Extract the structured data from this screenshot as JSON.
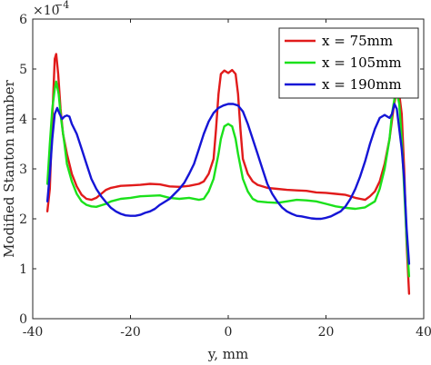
{
  "chart_data": {
    "type": "line",
    "title": "",
    "xlabel": "y, mm",
    "ylabel": "Modified Stanton number",
    "xlim": [
      -40,
      40
    ],
    "ylim": [
      0,
      6
    ],
    "xticks": [
      -40,
      -20,
      0,
      20,
      40
    ],
    "xtick_labels": [
      "-40",
      "-20",
      "0",
      "20",
      "40"
    ],
    "yticks": [
      0,
      1,
      2,
      3,
      4,
      5,
      6
    ],
    "ytick_labels": [
      "0",
      "1",
      "2",
      "3",
      "4",
      "5",
      "6"
    ],
    "y_multiplier_base": "×10",
    "y_multiplier_exp": "−4",
    "grid": false,
    "legend_position": "top-right",
    "series": [
      {
        "name": "x = 75mm",
        "color": "#e11b1b",
        "points": [
          [
            -37,
            2.15
          ],
          [
            -36.5,
            2.6
          ],
          [
            -36,
            4.0
          ],
          [
            -35.5,
            5.2
          ],
          [
            -35.2,
            5.3
          ],
          [
            -34.8,
            4.9
          ],
          [
            -34.3,
            4.2
          ],
          [
            -33.8,
            3.7
          ],
          [
            -33,
            3.3
          ],
          [
            -32,
            2.9
          ],
          [
            -31,
            2.65
          ],
          [
            -30,
            2.48
          ],
          [
            -29,
            2.4
          ],
          [
            -28,
            2.38
          ],
          [
            -27,
            2.42
          ],
          [
            -26,
            2.5
          ],
          [
            -25,
            2.58
          ],
          [
            -24,
            2.62
          ],
          [
            -22,
            2.66
          ],
          [
            -20,
            2.67
          ],
          [
            -18,
            2.68
          ],
          [
            -16,
            2.7
          ],
          [
            -14,
            2.69
          ],
          [
            -12,
            2.65
          ],
          [
            -10,
            2.64
          ],
          [
            -8,
            2.66
          ],
          [
            -6,
            2.7
          ],
          [
            -5,
            2.75
          ],
          [
            -4,
            2.9
          ],
          [
            -3,
            3.2
          ],
          [
            -2.5,
            3.8
          ],
          [
            -2,
            4.5
          ],
          [
            -1.5,
            4.9
          ],
          [
            -0.8,
            4.97
          ],
          [
            0,
            4.92
          ],
          [
            0.8,
            4.98
          ],
          [
            1.5,
            4.9
          ],
          [
            2,
            4.5
          ],
          [
            2.5,
            3.8
          ],
          [
            3,
            3.2
          ],
          [
            4,
            2.9
          ],
          [
            5,
            2.75
          ],
          [
            6,
            2.68
          ],
          [
            8,
            2.62
          ],
          [
            10,
            2.6
          ],
          [
            12,
            2.58
          ],
          [
            14,
            2.57
          ],
          [
            16,
            2.56
          ],
          [
            18,
            2.53
          ],
          [
            20,
            2.52
          ],
          [
            22,
            2.5
          ],
          [
            24,
            2.48
          ],
          [
            26,
            2.42
          ],
          [
            27,
            2.4
          ],
          [
            28,
            2.38
          ],
          [
            29,
            2.45
          ],
          [
            30,
            2.55
          ],
          [
            31,
            2.75
          ],
          [
            32,
            3.1
          ],
          [
            33,
            3.6
          ],
          [
            33.8,
            4.2
          ],
          [
            34.5,
            4.6
          ],
          [
            35,
            4.5
          ],
          [
            35.5,
            4.1
          ],
          [
            36,
            3.0
          ],
          [
            36.5,
            1.5
          ],
          [
            37,
            0.5
          ]
        ]
      },
      {
        "name": "x = 105mm",
        "color": "#1be11b",
        "points": [
          [
            -37,
            2.7
          ],
          [
            -36.5,
            3.5
          ],
          [
            -36,
            4.2
          ],
          [
            -35.5,
            4.6
          ],
          [
            -35.2,
            4.75
          ],
          [
            -34.7,
            4.5
          ],
          [
            -34.2,
            4.0
          ],
          [
            -33.5,
            3.5
          ],
          [
            -33,
            3.1
          ],
          [
            -32,
            2.75
          ],
          [
            -31,
            2.5
          ],
          [
            -30,
            2.35
          ],
          [
            -29,
            2.28
          ],
          [
            -28,
            2.25
          ],
          [
            -27,
            2.24
          ],
          [
            -26,
            2.27
          ],
          [
            -25,
            2.3
          ],
          [
            -24,
            2.35
          ],
          [
            -22,
            2.4
          ],
          [
            -20,
            2.42
          ],
          [
            -18,
            2.45
          ],
          [
            -16,
            2.46
          ],
          [
            -14,
            2.47
          ],
          [
            -12,
            2.42
          ],
          [
            -10,
            2.4
          ],
          [
            -8,
            2.42
          ],
          [
            -6,
            2.38
          ],
          [
            -5,
            2.4
          ],
          [
            -4,
            2.55
          ],
          [
            -3,
            2.8
          ],
          [
            -2,
            3.3
          ],
          [
            -1.5,
            3.6
          ],
          [
            -0.8,
            3.85
          ],
          [
            0,
            3.9
          ],
          [
            0.8,
            3.85
          ],
          [
            1.5,
            3.6
          ],
          [
            2,
            3.3
          ],
          [
            3,
            2.8
          ],
          [
            4,
            2.55
          ],
          [
            5,
            2.4
          ],
          [
            6,
            2.35
          ],
          [
            8,
            2.33
          ],
          [
            10,
            2.32
          ],
          [
            12,
            2.35
          ],
          [
            14,
            2.38
          ],
          [
            16,
            2.37
          ],
          [
            18,
            2.35
          ],
          [
            20,
            2.3
          ],
          [
            22,
            2.25
          ],
          [
            24,
            2.22
          ],
          [
            26,
            2.2
          ],
          [
            28,
            2.23
          ],
          [
            30,
            2.35
          ],
          [
            31,
            2.6
          ],
          [
            32,
            3.0
          ],
          [
            33,
            3.6
          ],
          [
            33.5,
            4.1
          ],
          [
            34,
            4.4
          ],
          [
            34.5,
            4.55
          ],
          [
            35,
            4.3
          ],
          [
            35.5,
            3.6
          ],
          [
            36,
            2.6
          ],
          [
            36.5,
            1.6
          ],
          [
            37,
            0.85
          ]
        ]
      },
      {
        "name": "x = 190mm",
        "color": "#1515d6",
        "points": [
          [
            -37,
            2.35
          ],
          [
            -36.5,
            2.9
          ],
          [
            -36,
            3.6
          ],
          [
            -35.5,
            4.1
          ],
          [
            -35,
            4.22
          ],
          [
            -34.5,
            4.1
          ],
          [
            -34,
            4.0
          ],
          [
            -33.5,
            4.05
          ],
          [
            -33,
            4.07
          ],
          [
            -32.5,
            4.05
          ],
          [
            -32,
            3.9
          ],
          [
            -31,
            3.7
          ],
          [
            -30,
            3.4
          ],
          [
            -29,
            3.1
          ],
          [
            -28,
            2.8
          ],
          [
            -27,
            2.6
          ],
          [
            -26,
            2.45
          ],
          [
            -25,
            2.33
          ],
          [
            -24,
            2.22
          ],
          [
            -23,
            2.15
          ],
          [
            -22,
            2.1
          ],
          [
            -21,
            2.07
          ],
          [
            -20,
            2.06
          ],
          [
            -19,
            2.06
          ],
          [
            -18,
            2.08
          ],
          [
            -17,
            2.12
          ],
          [
            -16,
            2.15
          ],
          [
            -15,
            2.2
          ],
          [
            -14,
            2.28
          ],
          [
            -12,
            2.4
          ],
          [
            -10,
            2.6
          ],
          [
            -9,
            2.72
          ],
          [
            -8,
            2.9
          ],
          [
            -7,
            3.1
          ],
          [
            -6,
            3.4
          ],
          [
            -5,
            3.7
          ],
          [
            -4,
            3.95
          ],
          [
            -3,
            4.12
          ],
          [
            -2,
            4.22
          ],
          [
            -1,
            4.27
          ],
          [
            0,
            4.3
          ],
          [
            1,
            4.3
          ],
          [
            2,
            4.27
          ],
          [
            3,
            4.15
          ],
          [
            4,
            3.9
          ],
          [
            5,
            3.6
          ],
          [
            6,
            3.3
          ],
          [
            7,
            3.0
          ],
          [
            8,
            2.7
          ],
          [
            9,
            2.5
          ],
          [
            10,
            2.35
          ],
          [
            11,
            2.23
          ],
          [
            12,
            2.15
          ],
          [
            13,
            2.1
          ],
          [
            14,
            2.06
          ],
          [
            15,
            2.05
          ],
          [
            16,
            2.03
          ],
          [
            17,
            2.01
          ],
          [
            18,
            2.0
          ],
          [
            19,
            2.0
          ],
          [
            20,
            2.02
          ],
          [
            21,
            2.05
          ],
          [
            22,
            2.1
          ],
          [
            23,
            2.15
          ],
          [
            24,
            2.25
          ],
          [
            25,
            2.4
          ],
          [
            26,
            2.6
          ],
          [
            27,
            2.85
          ],
          [
            28,
            3.15
          ],
          [
            29,
            3.5
          ],
          [
            30,
            3.8
          ],
          [
            31,
            4.02
          ],
          [
            32,
            4.08
          ],
          [
            33,
            4.02
          ],
          [
            33.5,
            4.1
          ],
          [
            34,
            4.3
          ],
          [
            34.5,
            4.2
          ],
          [
            35,
            3.8
          ],
          [
            35.5,
            3.4
          ],
          [
            36,
            2.8
          ],
          [
            36.5,
            1.8
          ],
          [
            37,
            1.1
          ]
        ]
      }
    ]
  }
}
